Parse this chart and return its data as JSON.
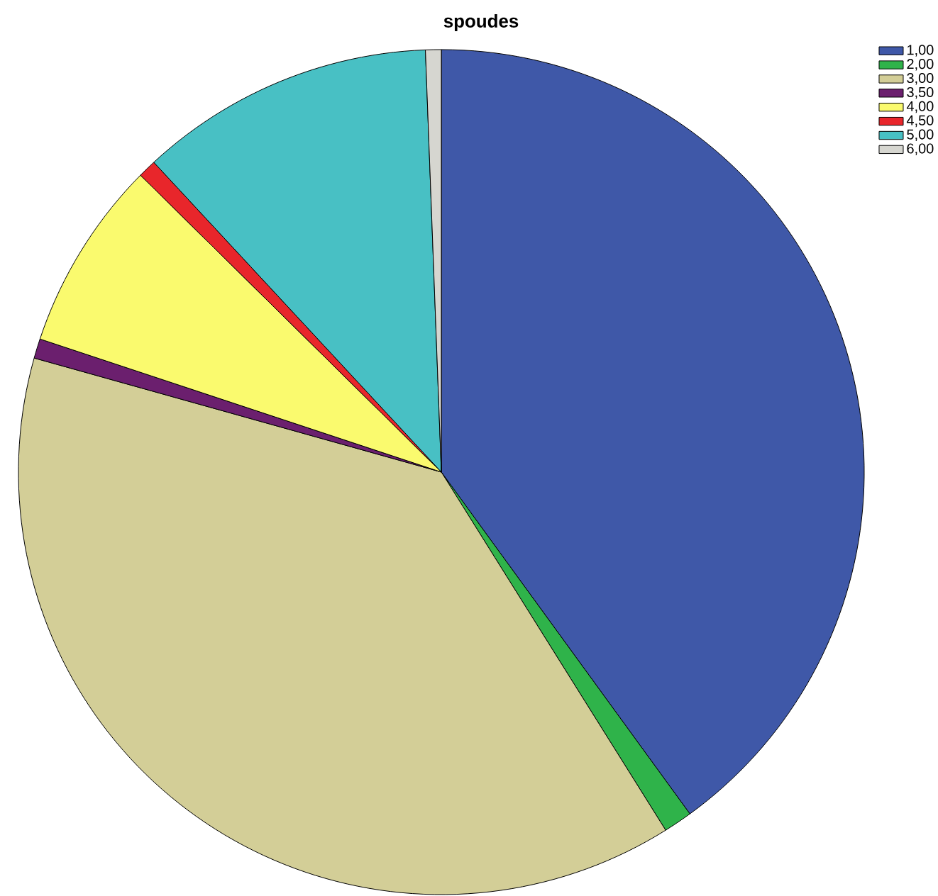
{
  "chart_data": {
    "type": "pie",
    "title": "spoudes",
    "categories": [
      "1,00",
      "2,00",
      "3,00",
      "3,50",
      "4,00",
      "4,50",
      "5,00",
      "6,00"
    ],
    "values": [
      40.0,
      1.1,
      38.25,
      0.75,
      7.3,
      0.7,
      11.3,
      0.6
    ],
    "colors": [
      "#3f58a8",
      "#2fb34a",
      "#d3ce97",
      "#6b1f6e",
      "#fafa6e",
      "#e8262b",
      "#48c0c4",
      "#d6d6d0"
    ],
    "legend": "top right"
  }
}
